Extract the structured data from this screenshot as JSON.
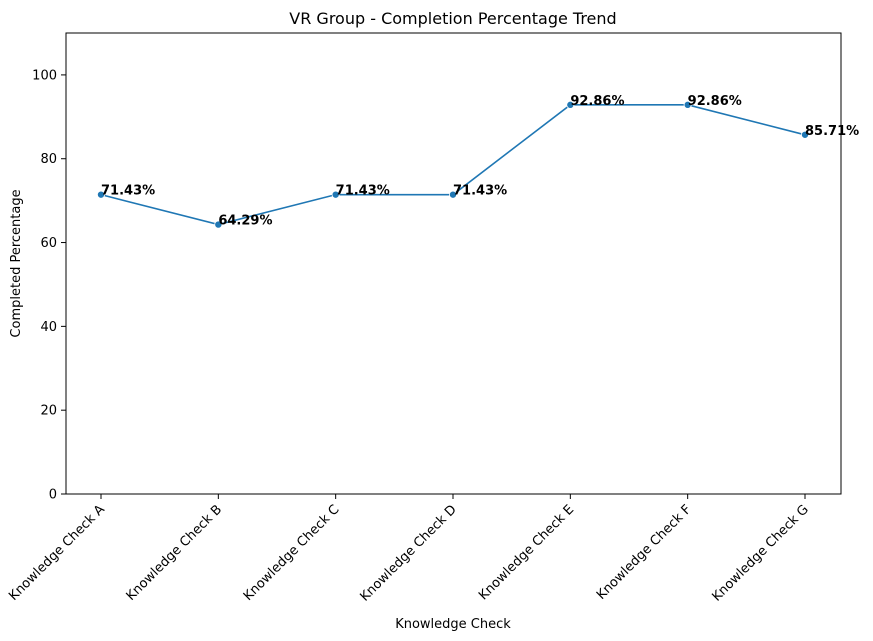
{
  "chart_data": {
    "type": "line",
    "title": "VR Group - Completion Percentage Trend",
    "xlabel": "Knowledge Check",
    "ylabel": "Completed Percentage",
    "categories": [
      "Knowledge Check A",
      "Knowledge Check B",
      "Knowledge Check C",
      "Knowledge Check D",
      "Knowledge Check E",
      "Knowledge Check F",
      "Knowledge Check G"
    ],
    "values": [
      71.43,
      64.29,
      71.43,
      71.43,
      92.86,
      92.86,
      85.71
    ],
    "data_labels": [
      "71.43%",
      "64.29%",
      "71.43%",
      "71.43%",
      "92.86%",
      "92.86%",
      "85.71%"
    ],
    "ylim": [
      0,
      110
    ],
    "yticks": [
      0,
      20,
      40,
      60,
      80,
      100
    ],
    "grid": false,
    "line_color": "#1f77b4",
    "marker": "circle"
  }
}
